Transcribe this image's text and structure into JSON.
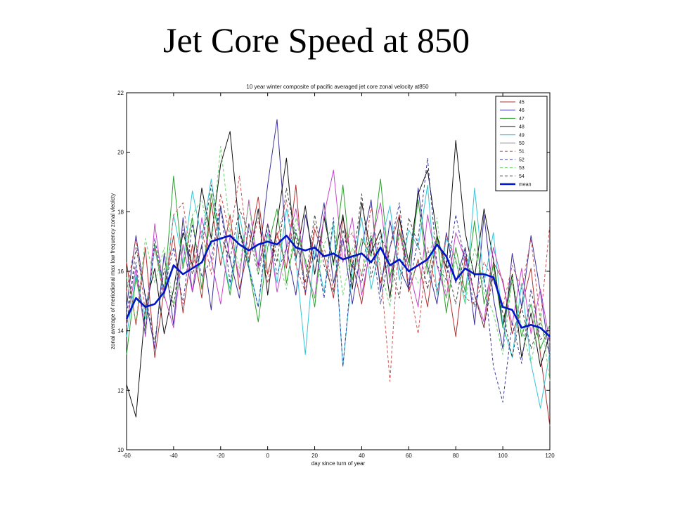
{
  "slide": {
    "title": "Jet Core Speed at 850"
  },
  "chart_data": {
    "type": "line",
    "title": "10 year winter composite of pacific averaged jet core zonal velocity at850",
    "xlabel": "day since turn of year",
    "ylabel": "zonal average of meriodional max low frequency zonal vleolcty",
    "xlim": [
      -60,
      120
    ],
    "ylim": [
      10,
      22
    ],
    "xticks": [
      -60,
      -40,
      -20,
      0,
      20,
      40,
      60,
      80,
      100,
      120
    ],
    "yticks": [
      10,
      12,
      14,
      16,
      18,
      20,
      22
    ],
    "grid": false,
    "legend_position": "top-right",
    "mean_x": [
      -60,
      -56,
      -52,
      -48,
      -44,
      -40,
      -36,
      -32,
      -28,
      -24,
      -20,
      -16,
      -12,
      -8,
      -4,
      0,
      4,
      8,
      12,
      16,
      20,
      24,
      28,
      32,
      36,
      40,
      44,
      48,
      52,
      56,
      60,
      64,
      68,
      72,
      76,
      80,
      84,
      88,
      92,
      96,
      100,
      104,
      108,
      112,
      116,
      120
    ],
    "series": [
      {
        "name": "45",
        "color": "#b03030",
        "dash": "solid",
        "values": [
          16.3,
          14.2,
          16.8,
          13.1,
          15.4,
          17.2,
          14.6,
          16.9,
          15.1,
          18.3,
          16.2,
          17.9,
          15.4,
          16.8,
          18.5,
          15.9,
          17.3,
          16.1,
          18.9,
          15.2,
          17.4,
          16.5,
          15.1,
          17.8,
          16.3,
          14.9,
          17.1,
          15.6,
          16.8,
          17.9,
          15.3,
          16.4,
          14.8,
          17.2,
          15.9,
          13.8,
          16.5,
          15.2,
          14.1,
          16.3,
          15.7,
          13.9,
          14.8,
          16.1,
          13.2,
          10.8
        ]
      },
      {
        "name": "46",
        "color": "#3a2f9a",
        "dash": "solid",
        "values": [
          14.8,
          17.2,
          15.1,
          13.4,
          16.6,
          14.2,
          17.8,
          15.3,
          16.9,
          14.7,
          18.2,
          16.4,
          15.1,
          17.6,
          16.2,
          18.9,
          21.1,
          16.8,
          15.2,
          17.9,
          16.4,
          18.3,
          15.6,
          17.1,
          14.9,
          16.8,
          18.4,
          15.3,
          17.7,
          16.1,
          15.4,
          18.8,
          16.2,
          14.9,
          17.3,
          15.6,
          16.8,
          14.2,
          17.9,
          15.1,
          13.4,
          16.6,
          14.8,
          17.2,
          15.3,
          13.1
        ]
      },
      {
        "name": "47",
        "color": "#2ca02c",
        "dash": "solid",
        "values": [
          13.2,
          15.8,
          14.1,
          16.9,
          15.3,
          19.2,
          16.1,
          17.8,
          15.4,
          18.6,
          16.9,
          15.2,
          17.4,
          16.1,
          14.3,
          16.8,
          18.1,
          15.6,
          17.3,
          16.4,
          14.8,
          17.9,
          16.2,
          18.9,
          15.7,
          17.1,
          16.5,
          19.1,
          15.8,
          17.3,
          16.1,
          18.4,
          15.9,
          17.2,
          14.6,
          16.8,
          15.3,
          17.7,
          14.9,
          16.2,
          14.1,
          15.7,
          13.8,
          14.9,
          13.4,
          14.2
        ]
      },
      {
        "name": "48",
        "color": "#111111",
        "dash": "solid",
        "values": [
          12.2,
          11.1,
          14.8,
          16.1,
          13.9,
          15.4,
          17.3,
          16.2,
          18.8,
          17.1,
          19.6,
          20.7,
          17.4,
          16.3,
          18.1,
          15.2,
          17.6,
          19.8,
          16.4,
          18.2,
          15.9,
          17.8,
          16.3,
          17.9,
          15.4,
          18.3,
          16.6,
          17.4,
          15.1,
          17.8,
          16.3,
          18.6,
          19.4,
          17.2,
          16.1,
          20.4,
          17.3,
          15.8,
          18.1,
          16.4,
          14.2,
          15.9,
          13.1,
          14.6,
          12.8,
          13.9
        ]
      },
      {
        "name": "49",
        "color": "#33c6d8",
        "dash": "solid",
        "values": [
          13.8,
          15.9,
          14.4,
          16.8,
          15.1,
          17.9,
          16.3,
          18.7,
          17.1,
          19.1,
          16.8,
          15.4,
          17.9,
          16.2,
          14.8,
          17.3,
          15.6,
          18.1,
          16.4,
          13.2,
          16.9,
          15.3,
          17.6,
          12.8,
          16.1,
          17.8,
          15.4,
          16.9,
          18.2,
          15.7,
          17.4,
          16.8,
          18.9,
          15.2,
          17.1,
          16.4,
          14.9,
          18.8,
          15.6,
          17.3,
          14.2,
          13.1,
          15.6,
          12.9,
          11.4,
          13.3
        ]
      },
      {
        "name": "50",
        "color": "#c945c9",
        "dash": "solid",
        "values": [
          14.2,
          16.1,
          13.8,
          17.6,
          15.2,
          14.1,
          16.9,
          15.3,
          17.8,
          16.4,
          14.9,
          17.2,
          15.8,
          18.4,
          16.1,
          17.6,
          15.3,
          16.8,
          18.1,
          16.2,
          15.1,
          17.9,
          19.4,
          16.3,
          17.8,
          15.2,
          16.9,
          18.3,
          15.6,
          17.4,
          16.1,
          14.8,
          17.9,
          16.2,
          15.1,
          17.3,
          16.4,
          15.2,
          14.3,
          16.8,
          15.6,
          14.2,
          16.1,
          13.9,
          15.4,
          13.6
        ]
      },
      {
        "name": "51",
        "color": "#d05050",
        "dash": "dashed",
        "values": [
          15.3,
          17.1,
          14.6,
          16.8,
          15.1,
          17.9,
          18.3,
          16.1,
          17.4,
          15.9,
          18.6,
          17.2,
          19.2,
          16.4,
          17.8,
          15.6,
          17.1,
          18.4,
          16.2,
          15.3,
          17.6,
          16.8,
          15.4,
          16.9,
          17.3,
          15.8,
          18.2,
          16.1,
          12.3,
          17.4,
          15.6,
          13.9,
          16.8,
          15.3,
          17.2,
          16.4,
          15.1,
          14.9,
          16.3,
          15.7,
          14.8,
          16.2,
          15.4,
          17.1,
          14.3,
          17.6
        ]
      },
      {
        "name": "52",
        "color": "#3a3a9a",
        "dash": "dashed",
        "values": [
          14.6,
          16.3,
          13.9,
          17.1,
          15.4,
          16.8,
          14.9,
          17.6,
          15.8,
          16.4,
          18.2,
          15.6,
          17.3,
          16.1,
          14.8,
          17.6,
          15.9,
          16.8,
          17.4,
          15.3,
          16.9,
          15.1,
          17.8,
          12.8,
          16.3,
          15.6,
          17.2,
          14.9,
          16.8,
          18.3,
          15.4,
          17.1,
          19.8,
          16.2,
          15.7,
          17.9,
          16.3,
          14.8,
          15.9,
          12.8,
          11.6,
          14.3,
          12.9,
          15.4,
          13.7,
          14.1
        ]
      },
      {
        "name": "53",
        "color": "#6ad66a",
        "dash": "dashed",
        "values": [
          15.8,
          14.3,
          17.1,
          15.6,
          16.8,
          14.9,
          16.2,
          17.9,
          18.4,
          16.8,
          20.2,
          17.4,
          16.1,
          18.3,
          15.9,
          17.2,
          16.6,
          15.4,
          17.8,
          16.3,
          15.1,
          16.9,
          17.6,
          15.2,
          16.8,
          15.9,
          17.3,
          16.1,
          14.8,
          17.4,
          16.3,
          15.6,
          16.2,
          17.8,
          15.1,
          16.4,
          14.9,
          16.8,
          15.3,
          14.6,
          13.2,
          15.8,
          14.1,
          12.9,
          14.6,
          12.3
        ]
      },
      {
        "name": "54",
        "color": "#444444",
        "dash": "dashed",
        "values": [
          14.1,
          16.8,
          15.2,
          13.6,
          16.1,
          14.8,
          17.4,
          15.9,
          16.8,
          18.9,
          17.2,
          16.4,
          18.1,
          17.3,
          15.9,
          17.6,
          16.3,
          18.8,
          17.1,
          15.6,
          17.9,
          16.2,
          15.3,
          17.4,
          16.1,
          18.6,
          15.8,
          17.2,
          16.4,
          15.1,
          17.8,
          16.9,
          15.4,
          17.1,
          16.3,
          14.9,
          16.8,
          15.2,
          14.1,
          15.9,
          14.6,
          13.1,
          14.8,
          13.4,
          14.3,
          13.2
        ]
      },
      {
        "name": "mean",
        "color": "#0015c8",
        "dash": "solid",
        "bold": true,
        "values": [
          14.4,
          15.1,
          14.8,
          14.9,
          15.3,
          16.2,
          15.9,
          16.1,
          16.3,
          17.0,
          17.1,
          17.2,
          16.9,
          16.7,
          16.9,
          17.0,
          16.9,
          17.2,
          16.8,
          16.7,
          16.8,
          16.5,
          16.6,
          16.4,
          16.5,
          16.6,
          16.3,
          16.8,
          16.2,
          16.4,
          16.0,
          16.2,
          16.4,
          16.9,
          16.5,
          15.7,
          16.1,
          15.9,
          15.9,
          15.8,
          14.8,
          14.7,
          14.1,
          14.2,
          14.1,
          13.8
        ]
      }
    ]
  }
}
